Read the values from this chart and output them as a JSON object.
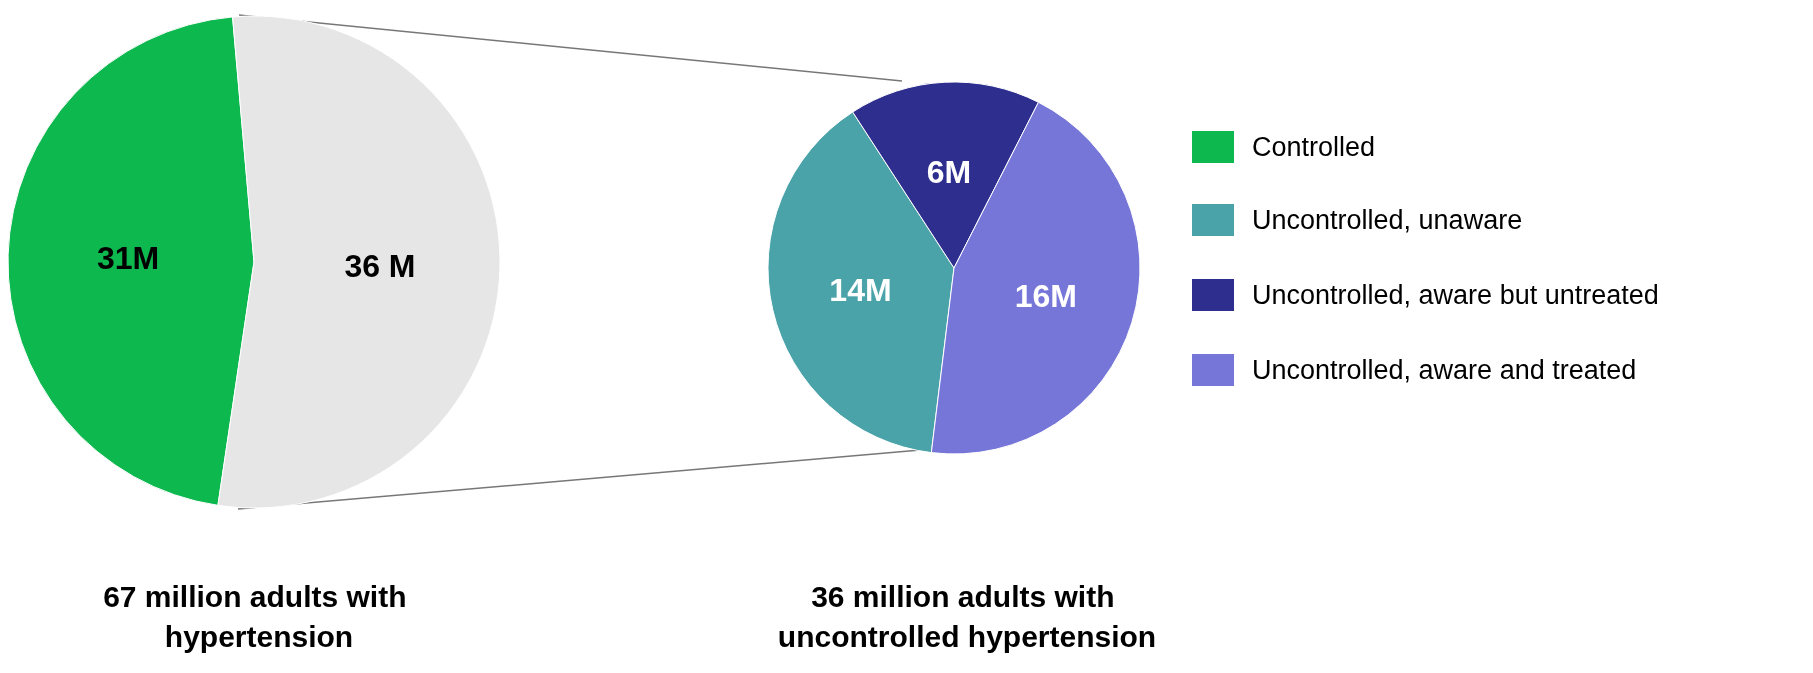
{
  "chart_data": [
    {
      "type": "pie",
      "title": "67 million adults with hypertension",
      "categories": [
        "Controlled",
        null
      ],
      "values": [
        31,
        36
      ],
      "colors": [
        "#0db84f",
        "#e6e6e6"
      ],
      "value_labels": [
        "31M",
        "36 M"
      ],
      "legend": "right"
    },
    {
      "type": "pie",
      "title": "36 million adults with uncontrolled hypertension",
      "categories": [
        "Uncontrolled, unaware",
        "Uncontrolled, aware but untreated",
        "Uncontrolled, aware and treated"
      ],
      "values": [
        14,
        6,
        16
      ],
      "colors": [
        "#4aa3a8",
        "#2e2e8f",
        "#7676d8"
      ],
      "value_labels": [
        "14M",
        "6M",
        "16M"
      ],
      "legend": "right"
    }
  ]
}
